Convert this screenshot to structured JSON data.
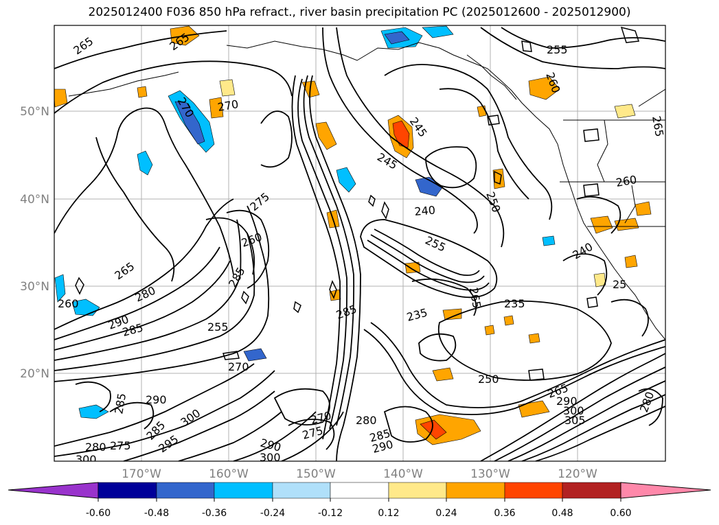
{
  "title": "2025012400 F036 850 hPa refract., river basin precipitation PC (2025012600 - 2025012900)",
  "map": {
    "lat_labels": [
      "50°N",
      "40°N",
      "30°N",
      "20°N"
    ],
    "lon_labels": [
      "170°W",
      "160°W",
      "150°W",
      "140°W",
      "130°W",
      "120°W"
    ],
    "contour_labels": [
      {
        "text": "265",
        "rot": -35
      },
      {
        "text": "265",
        "rot": -35
      },
      {
        "text": "270",
        "rot": 60
      },
      {
        "text": "270",
        "rot": -10
      },
      {
        "text": "245",
        "rot": 55
      },
      {
        "text": "245",
        "rot": 30
      },
      {
        "text": "250",
        "rot": 70
      },
      {
        "text": "240",
        "rot": -5
      },
      {
        "text": "255",
        "rot": 25
      },
      {
        "text": "260",
        "rot": 70
      },
      {
        "text": "255",
        "rot": 0
      },
      {
        "text": "265",
        "rot": 80
      },
      {
        "text": "260",
        "rot": -10
      },
      {
        "text": "275",
        "rot": -40
      },
      {
        "text": "260",
        "rot": -20
      },
      {
        "text": "265",
        "rot": -35
      },
      {
        "text": "285",
        "rot": -60
      },
      {
        "text": "280",
        "rot": -25
      },
      {
        "text": "285",
        "rot": -15
      },
      {
        "text": "290",
        "rot": -20
      },
      {
        "text": "255",
        "rot": 0
      },
      {
        "text": "270",
        "rot": 0
      },
      {
        "text": "285",
        "rot": -20
      },
      {
        "text": "235",
        "rot": -15
      },
      {
        "text": "235",
        "rot": 0
      },
      {
        "text": "250",
        "rot": 0
      },
      {
        "text": "240",
        "rot": -30
      },
      {
        "text": "285",
        "rot": -80
      },
      {
        "text": "290",
        "rot": 0
      },
      {
        "text": "300",
        "rot": -35
      },
      {
        "text": "285",
        "rot": -45
      },
      {
        "text": "295",
        "rot": -35
      },
      {
        "text": "280",
        "rot": 0
      },
      {
        "text": "275",
        "rot": 0
      },
      {
        "text": "300",
        "rot": 0
      },
      {
        "text": "290",
        "rot": 15
      },
      {
        "text": "300",
        "rot": 0
      },
      {
        "text": "270",
        "rot": -15
      },
      {
        "text": "275",
        "rot": -15
      },
      {
        "text": "280",
        "rot": 0
      },
      {
        "text": "285",
        "rot": -15
      },
      {
        "text": "290",
        "rot": -15
      },
      {
        "text": "265",
        "rot": -20
      },
      {
        "text": "290",
        "rot": 0
      },
      {
        "text": "300",
        "rot": 0
      },
      {
        "text": "305",
        "rot": 0
      },
      {
        "text": "280",
        "rot": -70
      },
      {
        "text": "265",
        "rot": 80
      },
      {
        "text": "260",
        "rot": 0
      },
      {
        "text": "25",
        "rot": 0
      }
    ]
  },
  "colorbar": {
    "ticks": [
      "-0.60",
      "-0.48",
      "-0.36",
      "-0.24",
      "-0.12",
      "0.12",
      "0.24",
      "0.36",
      "0.48",
      "0.60"
    ],
    "colors": [
      "#9933cc",
      "#000099",
      "#3366cc",
      "#00bfff",
      "#b0e0fa",
      "#ffffff",
      "#ffe98a",
      "#ffa500",
      "#ff4500",
      "#b22222",
      "#ff88aa"
    ]
  }
}
